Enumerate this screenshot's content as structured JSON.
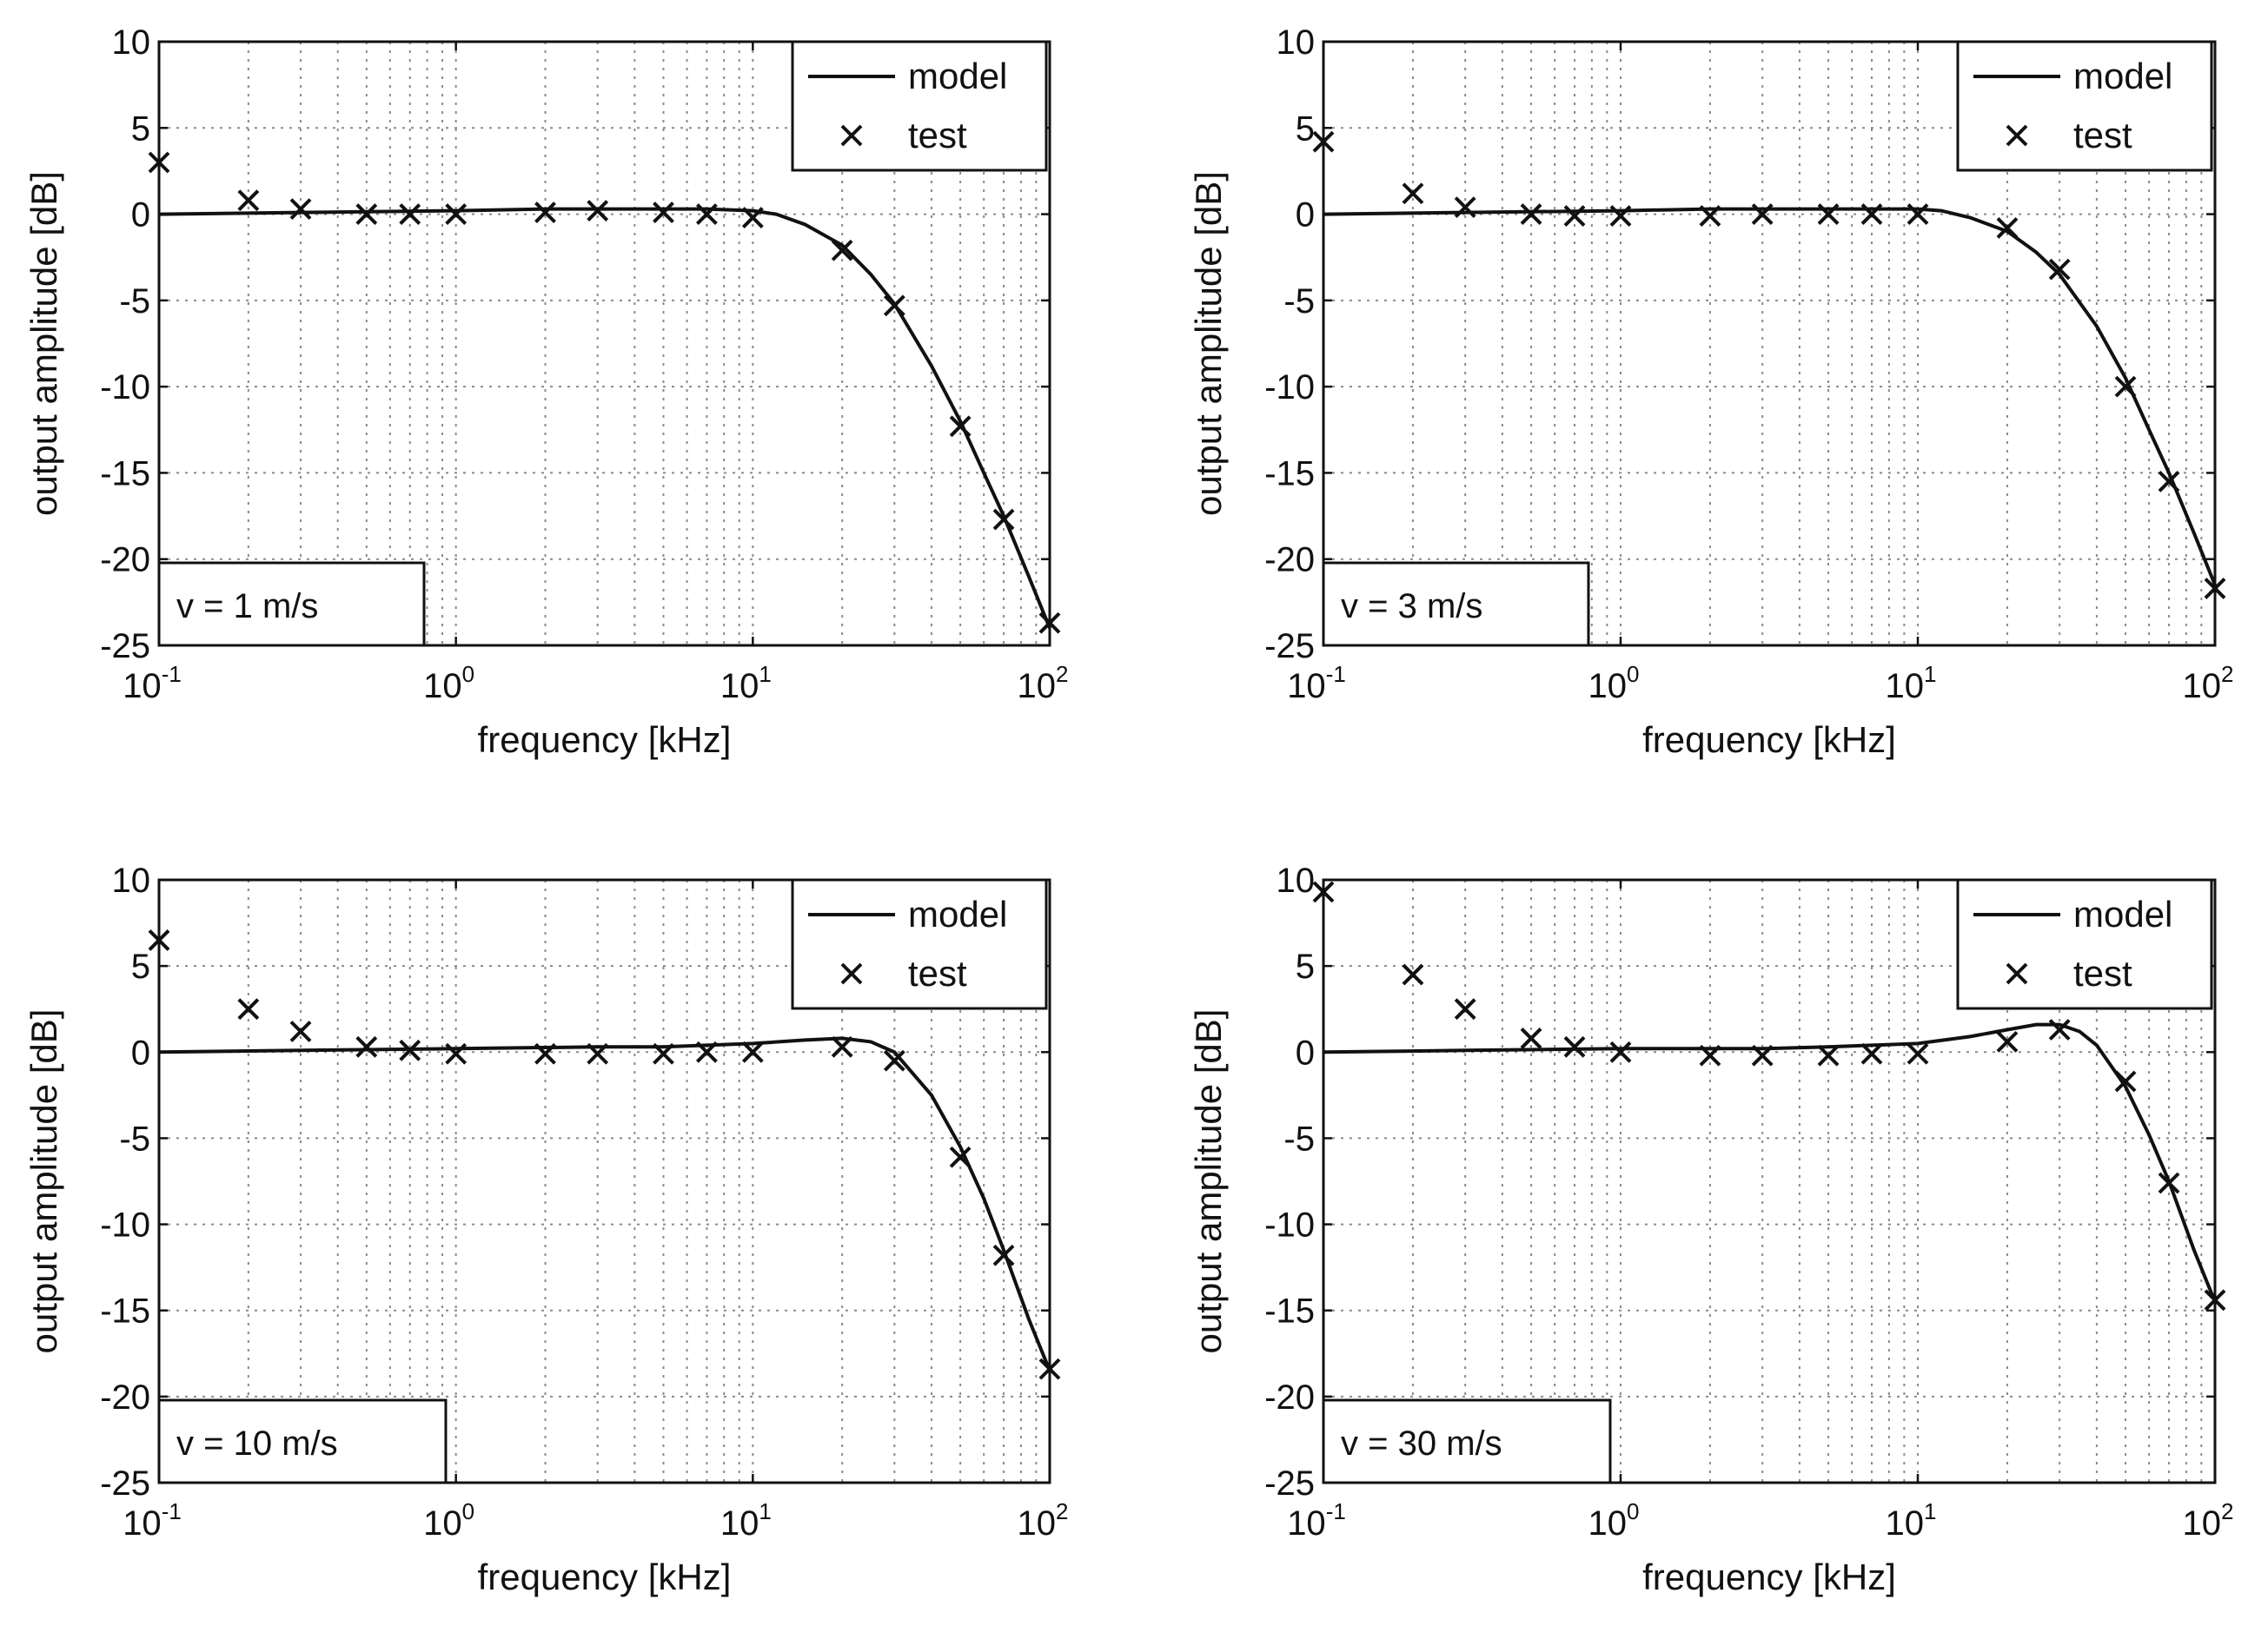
{
  "chart_data": [
    {
      "type": "line",
      "xscale": "log",
      "xlabel": "frequency [kHz]",
      "ylabel": "output amplitude [dB]",
      "xlim": [
        0.1,
        100
      ],
      "ylim": [
        -25,
        10
      ],
      "yticks": [
        10,
        5,
        0,
        -5,
        -10,
        -15,
        -20,
        -25
      ],
      "xticks": [
        {
          "base": "10",
          "exp": "-1"
        },
        {
          "base": "10",
          "exp": "0"
        },
        {
          "base": "10",
          "exp": "1"
        },
        {
          "base": "10",
          "exp": "2"
        }
      ],
      "grid": true,
      "legend": {
        "position": "top-right",
        "entries": [
          "model",
          "test"
        ]
      },
      "annotation": "v = 1 m/s",
      "series": [
        {
          "name": "model",
          "style": "line",
          "x": [
            0.1,
            0.3,
            1,
            2,
            3,
            5,
            7,
            10,
            12,
            15,
            20,
            25,
            30,
            40,
            50,
            60,
            70,
            85,
            100
          ],
          "y": [
            0,
            0.1,
            0.2,
            0.3,
            0.3,
            0.3,
            0.3,
            0.2,
            0,
            -0.6,
            -1.8,
            -3.5,
            -5.2,
            -8.8,
            -12,
            -15,
            -17.5,
            -21,
            -24
          ]
        },
        {
          "name": "test",
          "style": "x",
          "x": [
            0.1,
            0.2,
            0.3,
            0.5,
            0.7,
            1,
            2,
            3,
            5,
            7,
            10,
            20,
            30,
            50,
            70,
            100
          ],
          "y": [
            3,
            0.8,
            0.3,
            0,
            0,
            0,
            0.1,
            0.2,
            0.1,
            0,
            -0.2,
            -2.1,
            -5.3,
            -12.3,
            -17.7,
            -23.7
          ]
        }
      ]
    },
    {
      "type": "line",
      "xscale": "log",
      "xlabel": "frequency [kHz]",
      "ylabel": "output amplitude [dB]",
      "xlim": [
        0.1,
        100
      ],
      "ylim": [
        -25,
        10
      ],
      "yticks": [
        10,
        5,
        0,
        -5,
        -10,
        -15,
        -20,
        -25
      ],
      "xticks": [
        {
          "base": "10",
          "exp": "-1"
        },
        {
          "base": "10",
          "exp": "0"
        },
        {
          "base": "10",
          "exp": "1"
        },
        {
          "base": "10",
          "exp": "2"
        }
      ],
      "grid": true,
      "legend": {
        "position": "top-right",
        "entries": [
          "model",
          "test"
        ]
      },
      "annotation": "v = 3 m/s",
      "series": [
        {
          "name": "model",
          "style": "line",
          "x": [
            0.1,
            0.3,
            1,
            2,
            3,
            5,
            7,
            10,
            12,
            15,
            20,
            25,
            30,
            40,
            50,
            60,
            70,
            85,
            100
          ],
          "y": [
            0,
            0.1,
            0.2,
            0.3,
            0.3,
            0.3,
            0.3,
            0.3,
            0.2,
            -0.2,
            -1,
            -2.2,
            -3.5,
            -6.5,
            -9.5,
            -12.5,
            -15,
            -18.5,
            -21.5
          ]
        },
        {
          "name": "test",
          "style": "x",
          "x": [
            0.1,
            0.2,
            0.3,
            0.5,
            0.7,
            1,
            2,
            3,
            5,
            7,
            10,
            20,
            30,
            50,
            70,
            100
          ],
          "y": [
            4.2,
            1.2,
            0.4,
            0,
            -0.1,
            -0.1,
            -0.1,
            0,
            0,
            0,
            0,
            -0.8,
            -3.2,
            -10,
            -15.5,
            -21.7
          ]
        }
      ]
    },
    {
      "type": "line",
      "xscale": "log",
      "xlabel": "frequency [kHz]",
      "ylabel": "output amplitude [dB]",
      "xlim": [
        0.1,
        100
      ],
      "ylim": [
        -25,
        10
      ],
      "yticks": [
        10,
        5,
        0,
        -5,
        -10,
        -15,
        -20,
        -25
      ],
      "xticks": [
        {
          "base": "10",
          "exp": "-1"
        },
        {
          "base": "10",
          "exp": "0"
        },
        {
          "base": "10",
          "exp": "1"
        },
        {
          "base": "10",
          "exp": "2"
        }
      ],
      "grid": true,
      "legend": {
        "position": "top-right",
        "entries": [
          "model",
          "test"
        ]
      },
      "annotation": "v = 10 m/s",
      "series": [
        {
          "name": "model",
          "style": "line",
          "x": [
            0.1,
            0.3,
            1,
            3,
            5,
            10,
            15,
            20,
            25,
            30,
            40,
            50,
            60,
            70,
            85,
            100
          ],
          "y": [
            0,
            0.1,
            0.2,
            0.3,
            0.3,
            0.5,
            0.7,
            0.8,
            0.6,
            0,
            -2.5,
            -5.5,
            -8.5,
            -11.5,
            -15.5,
            -18.5
          ]
        },
        {
          "name": "test",
          "style": "x",
          "x": [
            0.1,
            0.2,
            0.3,
            0.5,
            0.7,
            1,
            2,
            3,
            5,
            7,
            10,
            20,
            30,
            50,
            70,
            100
          ],
          "y": [
            6.5,
            2.5,
            1.2,
            0.3,
            0.1,
            -0.1,
            -0.1,
            -0.1,
            -0.1,
            0,
            0,
            0.3,
            -0.5,
            -6.1,
            -11.8,
            -18.4
          ]
        }
      ]
    },
    {
      "type": "line",
      "xscale": "log",
      "xlabel": "frequency [kHz]",
      "ylabel": "output amplitude [dB]",
      "xlim": [
        0.1,
        100
      ],
      "ylim": [
        -25,
        10
      ],
      "yticks": [
        10,
        5,
        0,
        -5,
        -10,
        -15,
        -20,
        -25
      ],
      "xticks": [
        {
          "base": "10",
          "exp": "-1"
        },
        {
          "base": "10",
          "exp": "0"
        },
        {
          "base": "10",
          "exp": "1"
        },
        {
          "base": "10",
          "exp": "2"
        }
      ],
      "grid": true,
      "legend": {
        "position": "top-right",
        "entries": [
          "model",
          "test"
        ]
      },
      "annotation": "v = 30 m/s",
      "series": [
        {
          "name": "model",
          "style": "line",
          "x": [
            0.1,
            0.3,
            1,
            3,
            5,
            10,
            15,
            20,
            25,
            30,
            35,
            40,
            50,
            60,
            70,
            85,
            100
          ],
          "y": [
            0,
            0.1,
            0.2,
            0.2,
            0.3,
            0.5,
            0.9,
            1.3,
            1.6,
            1.6,
            1.2,
            0.4,
            -2,
            -4.8,
            -7.5,
            -11.5,
            -14.5
          ]
        },
        {
          "name": "test",
          "style": "x",
          "x": [
            0.1,
            0.2,
            0.3,
            0.5,
            0.7,
            1,
            2,
            3,
            5,
            7,
            10,
            20,
            30,
            50,
            70,
            100
          ],
          "y": [
            9.3,
            4.5,
            2.5,
            0.8,
            0.3,
            0,
            -0.2,
            -0.2,
            -0.2,
            -0.1,
            -0.1,
            0.6,
            1.3,
            -1.7,
            -7.6,
            -14.4
          ]
        }
      ]
    }
  ]
}
